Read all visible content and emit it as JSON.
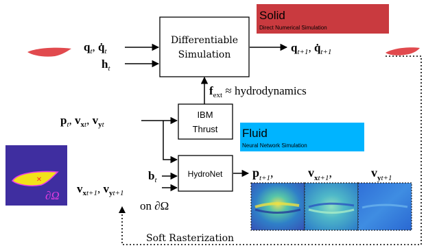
{
  "solid": {
    "title": "Solid",
    "subtitle": "Direct Numerical Simulation",
    "color": "#c93a3f"
  },
  "fluid": {
    "title": "Fluid",
    "subtitle": "Neural Network Simulation",
    "color": "#00b4ff"
  },
  "blocks": {
    "diffsim_line1": "Differentiable",
    "diffsim_line2": "Simulation",
    "ibm_line1": "IBM",
    "ibm_line2": "Thrust",
    "hydronet": "HydroNet"
  },
  "labels": {
    "q_in": "q",
    "q_in_sub": "t",
    "q_in_sep": ", ",
    "qdot_in": "q̇",
    "qdot_in_sub": "t",
    "h_in": "h",
    "h_in_sub": "t",
    "q_out": "q",
    "q_out_sub": "t+1",
    "q_out_sep": ", ",
    "qdot_out": "q̇",
    "qdot_out_sub": "t+1",
    "f_ext": "f",
    "f_ext_sub": "ext",
    "f_ext_rhs": " ≈ hydrodynamics",
    "p_in": "p",
    "p_in_sub": "t",
    "vx_in": "v",
    "vx_in_sub": "x",
    "vx_in_sub2": "t",
    "vy_in": "v",
    "vy_in_sub": "y",
    "vy_in_sub2": "t",
    "b_in": "b",
    "b_in_sub": "t",
    "vx_bc": "v",
    "vx_bc_sub": "x",
    "vx_bc_sub2": "t+1",
    "vy_bc": "v",
    "vy_bc_sub": "y",
    "vy_bc_sub2": "t+1",
    "on_boundary": "on ∂Ω",
    "p_out": "p",
    "p_out_sub": "t+1",
    "vx_out": "v",
    "vx_out_sub": "x",
    "vx_out_sub2": "t+1",
    "vy_out": "v",
    "vy_out_sub": "y",
    "vy_out_sub2": "t+1",
    "comma": ",",
    "boundary_symbol": "∂Ω",
    "soft_rasterization": "Soft Rasterization"
  },
  "colors": {
    "fish_red": "#dc2a2f",
    "mask_bg": "#3f2ea0",
    "mask_fill": "#f2e21a",
    "mask_edge": "#e83be6",
    "mask_dot": "#ff2a2a",
    "boundary_text": "#e23de0",
    "field_dark": "#2a6ad8",
    "field_light": "#4aa8e6"
  }
}
